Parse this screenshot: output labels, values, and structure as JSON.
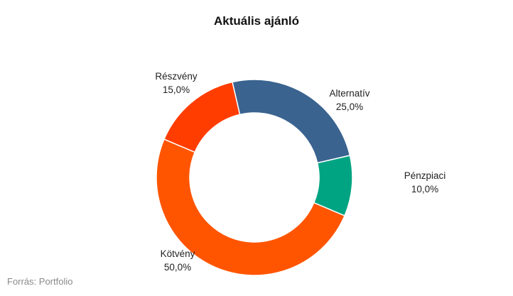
{
  "chart_data": {
    "type": "pie",
    "title": "Aktuális ajánló",
    "donut": true,
    "slices": [
      {
        "name": "Alternatív",
        "value": 25.0,
        "label": "25,0%",
        "color": "#3a6390"
      },
      {
        "name": "Pénzpiaci",
        "value": 10.0,
        "label": "10,0%",
        "color": "#00a482"
      },
      {
        "name": "Kötvény",
        "value": 50.0,
        "label": "50,0%",
        "color": "#ff5500"
      },
      {
        "name": "Részvény",
        "value": 15.0,
        "label": "15,0%",
        "color": "#ff3d00"
      }
    ]
  },
  "source": "Forrás: Portfolio"
}
